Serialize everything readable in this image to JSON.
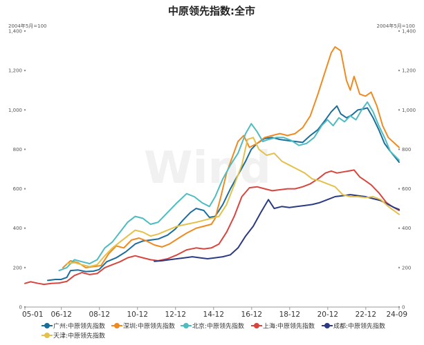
{
  "chart_data": {
    "type": "line",
    "title": "中原领先指数:全市",
    "unit_label_left": "2004年5月=100",
    "unit_label_right": "2004年5月=100",
    "watermark": "Wind",
    "xlim": [
      2005.0,
      2024.667
    ],
    "ylim": [
      0,
      1400
    ],
    "y_ticks": [
      0,
      200,
      400,
      600,
      800,
      1000,
      1200,
      1400
    ],
    "y_tick_labels": [
      "0",
      "200",
      "400",
      "600",
      "800",
      "1,000",
      "1,200",
      "1,400"
    ],
    "x_ticks": [
      {
        "x": 2005.0,
        "label": "05-01"
      },
      {
        "x": 2006.917,
        "label": "06-12"
      },
      {
        "x": 2008.917,
        "label": "08-12"
      },
      {
        "x": 2010.917,
        "label": "10-12"
      },
      {
        "x": 2012.917,
        "label": "12-12"
      },
      {
        "x": 2014.917,
        "label": "14-12"
      },
      {
        "x": 2016.917,
        "label": "16-12"
      },
      {
        "x": 2018.917,
        "label": "18-12"
      },
      {
        "x": 2020.917,
        "label": "20-12"
      },
      {
        "x": 2022.917,
        "label": "22-12"
      },
      {
        "x": 2024.667,
        "label": "24-09"
      }
    ],
    "grid": false,
    "legend_position": "bottom",
    "series": [
      {
        "name": "广州:中原领先指数",
        "color": "#1a6e9c",
        "points": [
          [
            2006.2,
            135
          ],
          [
            2006.6,
            140
          ],
          [
            2006.9,
            140
          ],
          [
            2007.2,
            150
          ],
          [
            2007.4,
            185
          ],
          [
            2007.8,
            188
          ],
          [
            2008.2,
            180
          ],
          [
            2008.6,
            182
          ],
          [
            2008.9,
            190
          ],
          [
            2009.3,
            230
          ],
          [
            2009.8,
            250
          ],
          [
            2010.3,
            280
          ],
          [
            2010.8,
            320
          ],
          [
            2011.2,
            335
          ],
          [
            2011.6,
            340
          ],
          [
            2012.0,
            345
          ],
          [
            2012.5,
            365
          ],
          [
            2012.9,
            395
          ],
          [
            2013.3,
            440
          ],
          [
            2013.7,
            480
          ],
          [
            2014.0,
            500
          ],
          [
            2014.4,
            490
          ],
          [
            2014.7,
            455
          ],
          [
            2015.0,
            460
          ],
          [
            2015.4,
            520
          ],
          [
            2015.8,
            600
          ],
          [
            2016.2,
            670
          ],
          [
            2016.6,
            740
          ],
          [
            2016.9,
            800
          ],
          [
            2017.2,
            830
          ],
          [
            2017.6,
            855
          ],
          [
            2018.0,
            860
          ],
          [
            2018.4,
            850
          ],
          [
            2018.8,
            845
          ],
          [
            2019.2,
            840
          ],
          [
            2019.6,
            835
          ],
          [
            2020.0,
            870
          ],
          [
            2020.4,
            900
          ],
          [
            2020.8,
            950
          ],
          [
            2021.1,
            990
          ],
          [
            2021.4,
            1020
          ],
          [
            2021.6,
            980
          ],
          [
            2021.9,
            960
          ],
          [
            2022.2,
            975
          ],
          [
            2022.5,
            1000
          ],
          [
            2022.8,
            1005
          ],
          [
            2023.0,
            1010
          ],
          [
            2023.3,
            960
          ],
          [
            2023.6,
            900
          ],
          [
            2023.9,
            830
          ],
          [
            2024.2,
            790
          ],
          [
            2024.667,
            735
          ]
        ]
      },
      {
        "name": "深圳:中原领先指数",
        "color": "#f08a1f",
        "points": [
          [
            2007.0,
            200
          ],
          [
            2007.4,
            235
          ],
          [
            2007.8,
            225
          ],
          [
            2008.2,
            200
          ],
          [
            2008.6,
            205
          ],
          [
            2009.0,
            210
          ],
          [
            2009.4,
            270
          ],
          [
            2009.8,
            310
          ],
          [
            2010.2,
            300
          ],
          [
            2010.6,
            340
          ],
          [
            2011.0,
            350
          ],
          [
            2011.4,
            335
          ],
          [
            2011.8,
            315
          ],
          [
            2012.2,
            305
          ],
          [
            2012.6,
            320
          ],
          [
            2013.0,
            345
          ],
          [
            2013.5,
            375
          ],
          [
            2014.0,
            400
          ],
          [
            2014.4,
            410
          ],
          [
            2014.8,
            420
          ],
          [
            2015.0,
            450
          ],
          [
            2015.3,
            560
          ],
          [
            2015.6,
            680
          ],
          [
            2015.9,
            760
          ],
          [
            2016.2,
            840
          ],
          [
            2016.5,
            870
          ],
          [
            2016.8,
            810
          ],
          [
            2017.2,
            830
          ],
          [
            2017.6,
            860
          ],
          [
            2018.0,
            870
          ],
          [
            2018.4,
            880
          ],
          [
            2018.8,
            870
          ],
          [
            2019.2,
            880
          ],
          [
            2019.6,
            910
          ],
          [
            2020.0,
            970
          ],
          [
            2020.4,
            1080
          ],
          [
            2020.8,
            1200
          ],
          [
            2021.1,
            1290
          ],
          [
            2021.3,
            1320
          ],
          [
            2021.6,
            1300
          ],
          [
            2021.9,
            1150
          ],
          [
            2022.1,
            1100
          ],
          [
            2022.3,
            1170
          ],
          [
            2022.6,
            1080
          ],
          [
            2022.9,
            1070
          ],
          [
            2023.2,
            1090
          ],
          [
            2023.5,
            1020
          ],
          [
            2023.8,
            920
          ],
          [
            2024.1,
            860
          ],
          [
            2024.667,
            810
          ]
        ]
      },
      {
        "name": "北京:中原领先指数",
        "color": "#4dbcc0",
        "points": [
          [
            2006.8,
            185
          ],
          [
            2007.2,
            200
          ],
          [
            2007.6,
            240
          ],
          [
            2008.0,
            230
          ],
          [
            2008.4,
            220
          ],
          [
            2008.8,
            240
          ],
          [
            2009.2,
            300
          ],
          [
            2009.6,
            330
          ],
          [
            2010.0,
            380
          ],
          [
            2010.4,
            430
          ],
          [
            2010.8,
            460
          ],
          [
            2011.2,
            450
          ],
          [
            2011.6,
            420
          ],
          [
            2012.0,
            430
          ],
          [
            2012.5,
            480
          ],
          [
            2013.0,
            530
          ],
          [
            2013.5,
            575
          ],
          [
            2013.9,
            560
          ],
          [
            2014.3,
            530
          ],
          [
            2014.7,
            510
          ],
          [
            2015.0,
            560
          ],
          [
            2015.4,
            650
          ],
          [
            2015.8,
            720
          ],
          [
            2016.2,
            780
          ],
          [
            2016.6,
            880
          ],
          [
            2016.9,
            930
          ],
          [
            2017.2,
            890
          ],
          [
            2017.5,
            840
          ],
          [
            2017.8,
            850
          ],
          [
            2018.2,
            860
          ],
          [
            2018.6,
            860
          ],
          [
            2019.0,
            845
          ],
          [
            2019.4,
            820
          ],
          [
            2019.8,
            830
          ],
          [
            2020.2,
            860
          ],
          [
            2020.6,
            920
          ],
          [
            2020.9,
            950
          ],
          [
            2021.2,
            920
          ],
          [
            2021.5,
            960
          ],
          [
            2021.8,
            940
          ],
          [
            2022.1,
            970
          ],
          [
            2022.4,
            950
          ],
          [
            2022.7,
            1000
          ],
          [
            2023.0,
            1040
          ],
          [
            2023.3,
            990
          ],
          [
            2023.6,
            920
          ],
          [
            2023.9,
            860
          ],
          [
            2024.2,
            790
          ],
          [
            2024.667,
            745
          ]
        ]
      },
      {
        "name": "上海:中原领先指数",
        "color": "#d9453d",
        "points": [
          [
            2005.0,
            120
          ],
          [
            2005.3,
            128
          ],
          [
            2005.7,
            120
          ],
          [
            2006.0,
            115
          ],
          [
            2006.4,
            120
          ],
          [
            2006.8,
            122
          ],
          [
            2007.2,
            130
          ],
          [
            2007.6,
            160
          ],
          [
            2008.0,
            175
          ],
          [
            2008.4,
            165
          ],
          [
            2008.8,
            170
          ],
          [
            2009.2,
            200
          ],
          [
            2009.6,
            215
          ],
          [
            2010.0,
            230
          ],
          [
            2010.4,
            250
          ],
          [
            2010.8,
            260
          ],
          [
            2011.2,
            250
          ],
          [
            2011.6,
            240
          ],
          [
            2012.0,
            235
          ],
          [
            2012.5,
            245
          ],
          [
            2013.0,
            265
          ],
          [
            2013.5,
            290
          ],
          [
            2014.0,
            300
          ],
          [
            2014.4,
            295
          ],
          [
            2014.8,
            300
          ],
          [
            2015.2,
            320
          ],
          [
            2015.6,
            380
          ],
          [
            2016.0,
            460
          ],
          [
            2016.4,
            560
          ],
          [
            2016.8,
            605
          ],
          [
            2017.2,
            610
          ],
          [
            2017.6,
            600
          ],
          [
            2018.0,
            590
          ],
          [
            2018.4,
            595
          ],
          [
            2018.8,
            600
          ],
          [
            2019.2,
            600
          ],
          [
            2019.6,
            610
          ],
          [
            2020.0,
            625
          ],
          [
            2020.4,
            650
          ],
          [
            2020.8,
            680
          ],
          [
            2021.1,
            690
          ],
          [
            2021.4,
            680
          ],
          [
            2021.7,
            685
          ],
          [
            2022.0,
            690
          ],
          [
            2022.3,
            695
          ],
          [
            2022.6,
            660
          ],
          [
            2022.9,
            640
          ],
          [
            2023.2,
            620
          ],
          [
            2023.6,
            580
          ],
          [
            2024.0,
            530
          ],
          [
            2024.3,
            510
          ],
          [
            2024.667,
            490
          ]
        ]
      },
      {
        "name": "成都:中原领先指数",
        "color": "#2b3a82",
        "points": [
          [
            2011.8,
            232
          ],
          [
            2012.2,
            235
          ],
          [
            2012.6,
            240
          ],
          [
            2013.0,
            245
          ],
          [
            2013.4,
            250
          ],
          [
            2013.8,
            255
          ],
          [
            2014.2,
            250
          ],
          [
            2014.6,
            245
          ],
          [
            2015.0,
            250
          ],
          [
            2015.4,
            255
          ],
          [
            2015.8,
            265
          ],
          [
            2016.2,
            300
          ],
          [
            2016.6,
            360
          ],
          [
            2017.0,
            410
          ],
          [
            2017.4,
            480
          ],
          [
            2017.8,
            545
          ],
          [
            2018.1,
            500
          ],
          [
            2018.5,
            510
          ],
          [
            2018.9,
            505
          ],
          [
            2019.3,
            510
          ],
          [
            2019.7,
            515
          ],
          [
            2020.1,
            520
          ],
          [
            2020.5,
            530
          ],
          [
            2020.9,
            545
          ],
          [
            2021.3,
            560
          ],
          [
            2021.7,
            565
          ],
          [
            2022.1,
            570
          ],
          [
            2022.5,
            565
          ],
          [
            2022.9,
            560
          ],
          [
            2023.3,
            550
          ],
          [
            2023.7,
            540
          ],
          [
            2024.1,
            520
          ],
          [
            2024.4,
            505
          ],
          [
            2024.667,
            495
          ]
        ]
      },
      {
        "name": "天津:中原领先指数",
        "color": "#e3c14a",
        "points": [
          [
            2007.2,
            220
          ],
          [
            2007.6,
            225
          ],
          [
            2008.0,
            215
          ],
          [
            2008.4,
            205
          ],
          [
            2008.8,
            215
          ],
          [
            2009.2,
            260
          ],
          [
            2009.6,
            300
          ],
          [
            2010.0,
            330
          ],
          [
            2010.4,
            360
          ],
          [
            2010.8,
            390
          ],
          [
            2011.2,
            380
          ],
          [
            2011.6,
            360
          ],
          [
            2012.0,
            370
          ],
          [
            2012.5,
            390
          ],
          [
            2013.0,
            410
          ],
          [
            2013.5,
            420
          ],
          [
            2014.0,
            430
          ],
          [
            2014.4,
            440
          ],
          [
            2014.8,
            450
          ],
          [
            2015.2,
            460
          ],
          [
            2015.6,
            520
          ],
          [
            2016.0,
            620
          ],
          [
            2016.4,
            720
          ],
          [
            2016.7,
            850
          ],
          [
            2017.0,
            860
          ],
          [
            2017.3,
            800
          ],
          [
            2017.7,
            770
          ],
          [
            2018.1,
            780
          ],
          [
            2018.5,
            740
          ],
          [
            2018.9,
            720
          ],
          [
            2019.3,
            700
          ],
          [
            2019.7,
            680
          ],
          [
            2020.1,
            650
          ],
          [
            2020.5,
            640
          ],
          [
            2020.9,
            625
          ],
          [
            2021.3,
            610
          ],
          [
            2021.7,
            570
          ],
          [
            2022.1,
            560
          ],
          [
            2022.5,
            560
          ],
          [
            2022.9,
            555
          ],
          [
            2023.3,
            560
          ],
          [
            2023.7,
            545
          ],
          [
            2024.1,
            510
          ],
          [
            2024.667,
            470
          ]
        ]
      }
    ]
  }
}
